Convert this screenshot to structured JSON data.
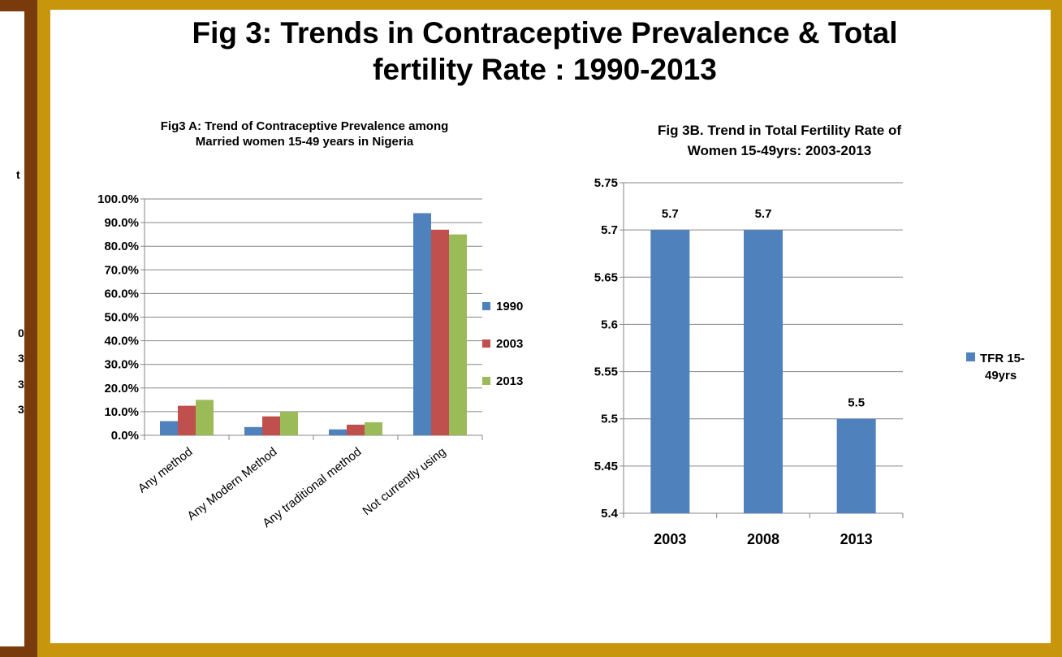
{
  "main_title_line1": "Fig 3: Trends in Contraceptive Prevalence & Total",
  "main_title_line2": "fertility Rate : 1990-2013",
  "left_edge_fragments": [
    "t",
    "0",
    "3",
    "3",
    "3"
  ],
  "colors": {
    "frame": "#c8960c",
    "left_bar": "#7a3b0c",
    "series_1990": "#4f81bd",
    "series_2003": "#c0504d",
    "series_2013": "#9bbb59",
    "tfr": "#4f81bd"
  },
  "chart_data": [
    {
      "type": "bar",
      "title_lines": [
        "Fig3 A:  Trend of Contraceptive Prevalence among",
        "Married women   15-49 years  in Nigeria"
      ],
      "categories": [
        "Any method",
        "Any Modern Method",
        "Any traditional method",
        "Not currently using"
      ],
      "series": [
        {
          "name": "1990",
          "values": [
            6.0,
            3.5,
            2.5,
            94.0
          ]
        },
        {
          "name": "2003",
          "values": [
            12.5,
            8.0,
            4.5,
            87.0
          ]
        },
        {
          "name": "2013",
          "values": [
            15.0,
            10.0,
            5.5,
            85.0
          ]
        }
      ],
      "yticks": [
        "0.0%",
        "10.0%",
        "20.0%",
        "30.0%",
        "40.0%",
        "50.0%",
        "60.0%",
        "70.0%",
        "80.0%",
        "90.0%",
        "100.0%"
      ],
      "ylim": [
        0,
        100
      ],
      "ytick_step": 10,
      "legend_position": "right",
      "grid": true
    },
    {
      "type": "bar",
      "title_lines": [
        "Fig 3B.  Trend in Total Fertility Rate  of",
        "Women 15-49yrs: 2003-2013"
      ],
      "categories": [
        "2003",
        "2008",
        "2013"
      ],
      "series": [
        {
          "name_lines": [
            "TFR 15-",
            "49yrs"
          ],
          "values": [
            5.7,
            5.7,
            5.5
          ],
          "data_labels": [
            "5.7",
            "5.7",
            "5.5"
          ]
        }
      ],
      "yticks": [
        "5.4",
        "5.45",
        "5.5",
        "5.55",
        "5.6",
        "5.65",
        "5.7",
        "5.75"
      ],
      "ylim": [
        5.4,
        5.75
      ],
      "ytick_step": 0.05,
      "legend_position": "right",
      "grid": true
    }
  ]
}
